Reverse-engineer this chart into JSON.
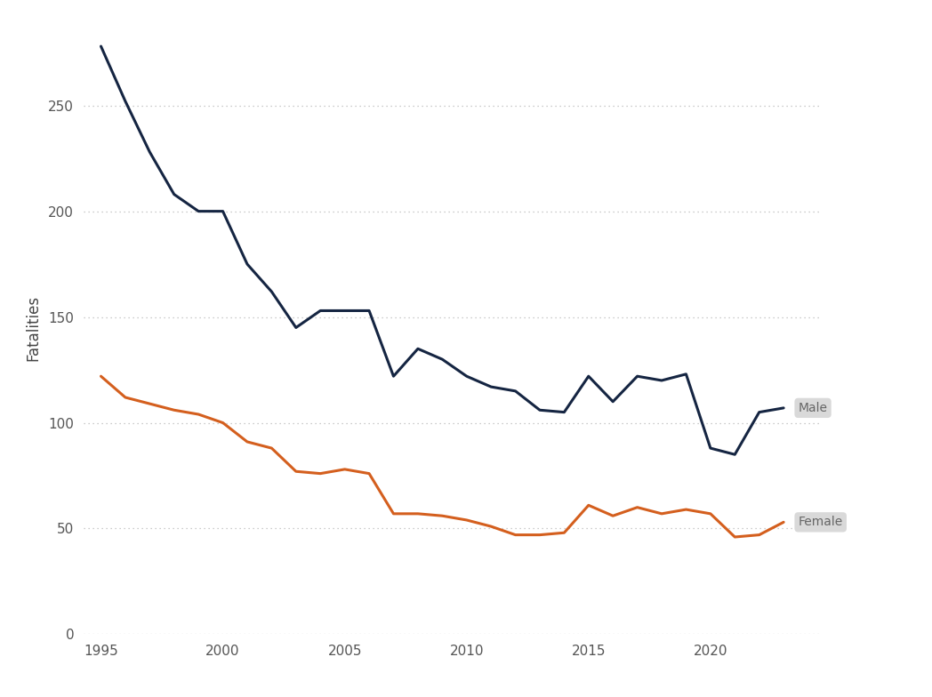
{
  "years": [
    1995,
    1996,
    1997,
    1998,
    1999,
    2000,
    2001,
    2002,
    2003,
    2004,
    2005,
    2006,
    2007,
    2008,
    2009,
    2010,
    2011,
    2012,
    2013,
    2014,
    2015,
    2016,
    2017,
    2018,
    2019,
    2020,
    2021,
    2022,
    2023
  ],
  "male": [
    278,
    252,
    228,
    208,
    200,
    200,
    175,
    162,
    145,
    153,
    153,
    153,
    122,
    135,
    130,
    122,
    117,
    115,
    106,
    105,
    122,
    110,
    122,
    120,
    123,
    88,
    85,
    105,
    107
  ],
  "female": [
    122,
    112,
    109,
    106,
    104,
    100,
    91,
    88,
    77,
    76,
    78,
    76,
    57,
    57,
    56,
    54,
    51,
    47,
    47,
    48,
    61,
    56,
    60,
    57,
    59,
    57,
    46,
    47,
    53
  ],
  "male_color": "#152542",
  "female_color": "#d45f1e",
  "background_color": "#ffffff",
  "ylabel": "Fatalities",
  "ylim": [
    0,
    290
  ],
  "yticks": [
    0,
    50,
    100,
    150,
    200,
    250
  ],
  "xlim": [
    1994.3,
    2024.5
  ],
  "xticks": [
    1995,
    2000,
    2005,
    2010,
    2015,
    2020
  ],
  "grid_color": "#bbbbbb",
  "label_male": "Male",
  "label_female": "Female",
  "label_bg_color": "#d9d9d9",
  "label_text_color": "#666666",
  "label_fontsize": 10,
  "axis_label_fontsize": 12,
  "tick_fontsize": 11,
  "line_width": 2.2,
  "tick_color": "#555555",
  "ylabel_color": "#444444"
}
